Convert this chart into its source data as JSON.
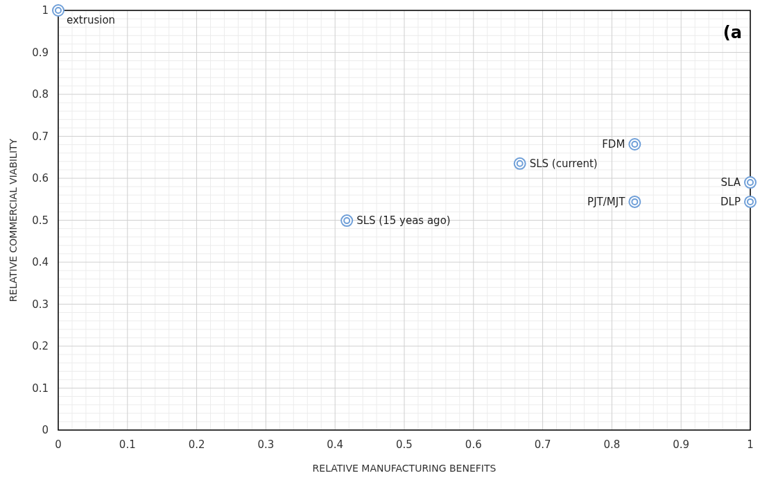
{
  "chart_data": {
    "type": "scatter",
    "xlabel": "RELATIVE MANUFACTURING BENEFITS",
    "ylabel": "RELATIVE COMMERCIAL VIABILITY",
    "x": [
      0,
      0.667,
      0.833,
      0.833,
      0.417,
      1,
      1
    ],
    "series": [
      {
        "color": "#6f9fd8",
        "values": [
          1,
          0.635,
          0.681,
          0.544,
          0.499,
          0.59,
          0.544
        ]
      }
    ],
    "xlim": [
      0,
      1
    ],
    "xticks": [
      0,
      0.1,
      0.2,
      0.3,
      0.4,
      0.5,
      0.6,
      0.7,
      0.8,
      0.9,
      1
    ],
    "ylim": [
      0,
      1
    ],
    "yticks": [
      0,
      0.1,
      0.2,
      0.3,
      0.4,
      0.5,
      0.6,
      0.7,
      0.8,
      0.9,
      1
    ],
    "grid": true,
    "marker": "circle",
    "annotations": [
      {
        "text": "extrusion",
        "x": 0,
        "y": 1
      },
      {
        "text": "SLS (current)",
        "x": 0.667,
        "y": 0.635
      },
      {
        "text": "FDM",
        "x": 0.833,
        "y": 0.681
      },
      {
        "text": "PJT/MJT",
        "x": 0.833,
        "y": 0.544
      },
      {
        "text": "SLS (15 yeas ago)",
        "x": 0.417,
        "y": 0.499
      },
      {
        "text": "SLA",
        "x": 1,
        "y": 0.59
      },
      {
        "text": "DLP",
        "x": 1,
        "y": 0.544
      },
      "(a"
    ]
  }
}
